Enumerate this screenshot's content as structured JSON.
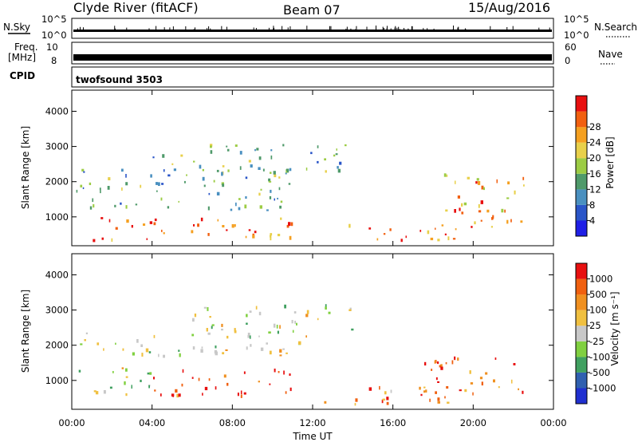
{
  "header": {
    "station": "Clyde River (fitACF)",
    "beam": "Beam 07",
    "date": "15/Aug/2016"
  },
  "strips": {
    "nsky_label": "N.Sky",
    "nsearch_label": "N.Search",
    "freq_label_1": "Freq.",
    "freq_label_2": "[MHz]",
    "nave_label": "Nave",
    "cpid_label": "CPID",
    "nsky_ticks": [
      "10^5",
      "10^0"
    ],
    "nsearch_ticks": [
      "10^5",
      "10^0"
    ],
    "freq_ticks": [
      "10",
      "8"
    ],
    "nave_ticks": [
      "60",
      "0"
    ],
    "cpid_value": "twofsound 3503"
  },
  "chart_data": [
    {
      "type": "heatmap",
      "name": "power-panel",
      "ylabel": "Slant Range [km]",
      "xlabel": "",
      "x_ticks": [
        "00:00",
        "04:00",
        "08:00",
        "12:00",
        "16:00",
        "20:00",
        "00:00"
      ],
      "y_ticks": [
        "1000",
        "2000",
        "3000",
        "4000"
      ],
      "xlim_hours": [
        0,
        24
      ],
      "ylim_km": [
        180,
        4600
      ],
      "colorbar_label": "Power [dB]",
      "colorbar_ticks": [
        "4",
        "8",
        "12",
        "16",
        "20",
        "24",
        "28"
      ],
      "colorbar_colors": [
        "#1f1fe6",
        "#2a55c8",
        "#4a90c0",
        "#4f9a6a",
        "#9ccc44",
        "#e8d04a",
        "#f5a020",
        "#f26010",
        "#e81010"
      ],
      "echo_bands": [
        {
          "t0": 1.0,
          "t1": 11.0,
          "r0": 300,
          "r1": 1000,
          "level": 7
        },
        {
          "t0": 13.5,
          "t1": 20.0,
          "r0": 350,
          "r1": 850,
          "level": 7
        },
        {
          "t0": 18.5,
          "t1": 22.5,
          "r0": 700,
          "r1": 2300,
          "level": 6
        },
        {
          "t0": 0.2,
          "t1": 11.0,
          "r0": 1200,
          "r1": 2400,
          "level": 3
        },
        {
          "t0": 4.0,
          "t1": 14.0,
          "r0": 2300,
          "r1": 3100,
          "level": 3
        }
      ]
    },
    {
      "type": "heatmap",
      "name": "velocity-panel",
      "ylabel": "Slant Range [km]",
      "xlabel": "Time UT",
      "x_ticks": [
        "00:00",
        "04:00",
        "08:00",
        "12:00",
        "16:00",
        "20:00",
        "00:00"
      ],
      "y_ticks": [
        "1000",
        "2000",
        "3000",
        "4000"
      ],
      "xlim_hours": [
        0,
        24
      ],
      "ylim_km": [
        180,
        4600
      ],
      "colorbar_label": "Velocity [m s⁻¹]",
      "colorbar_ticks": [
        "1000",
        "500",
        "100",
        "25",
        "-25",
        "-100",
        "-500",
        "-1000"
      ],
      "colorbar_colors": [
        "#2030d0",
        "#3060b0",
        "#40a060",
        "#80d040",
        "#c8c8c8",
        "#f0c040",
        "#f09020",
        "#f06010",
        "#e81010"
      ],
      "echo_bands": [
        {
          "t0": 4.0,
          "t1": 11.0,
          "r0": 600,
          "r1": 1400,
          "level": 7
        },
        {
          "t0": 12.0,
          "t1": 20.0,
          "r0": 350,
          "r1": 900,
          "level": 6
        },
        {
          "t0": 17.5,
          "t1": 22.5,
          "r0": 700,
          "r1": 1700,
          "level": 7
        },
        {
          "t0": 0.2,
          "t1": 4.0,
          "r0": 600,
          "r1": 1400,
          "level": 4
        },
        {
          "t0": 0.2,
          "t1": 12.0,
          "r0": 1700,
          "r1": 2400,
          "level": 4
        },
        {
          "t0": 6.0,
          "t1": 14.0,
          "r0": 2400,
          "r1": 3200,
          "level": 4
        }
      ]
    }
  ]
}
